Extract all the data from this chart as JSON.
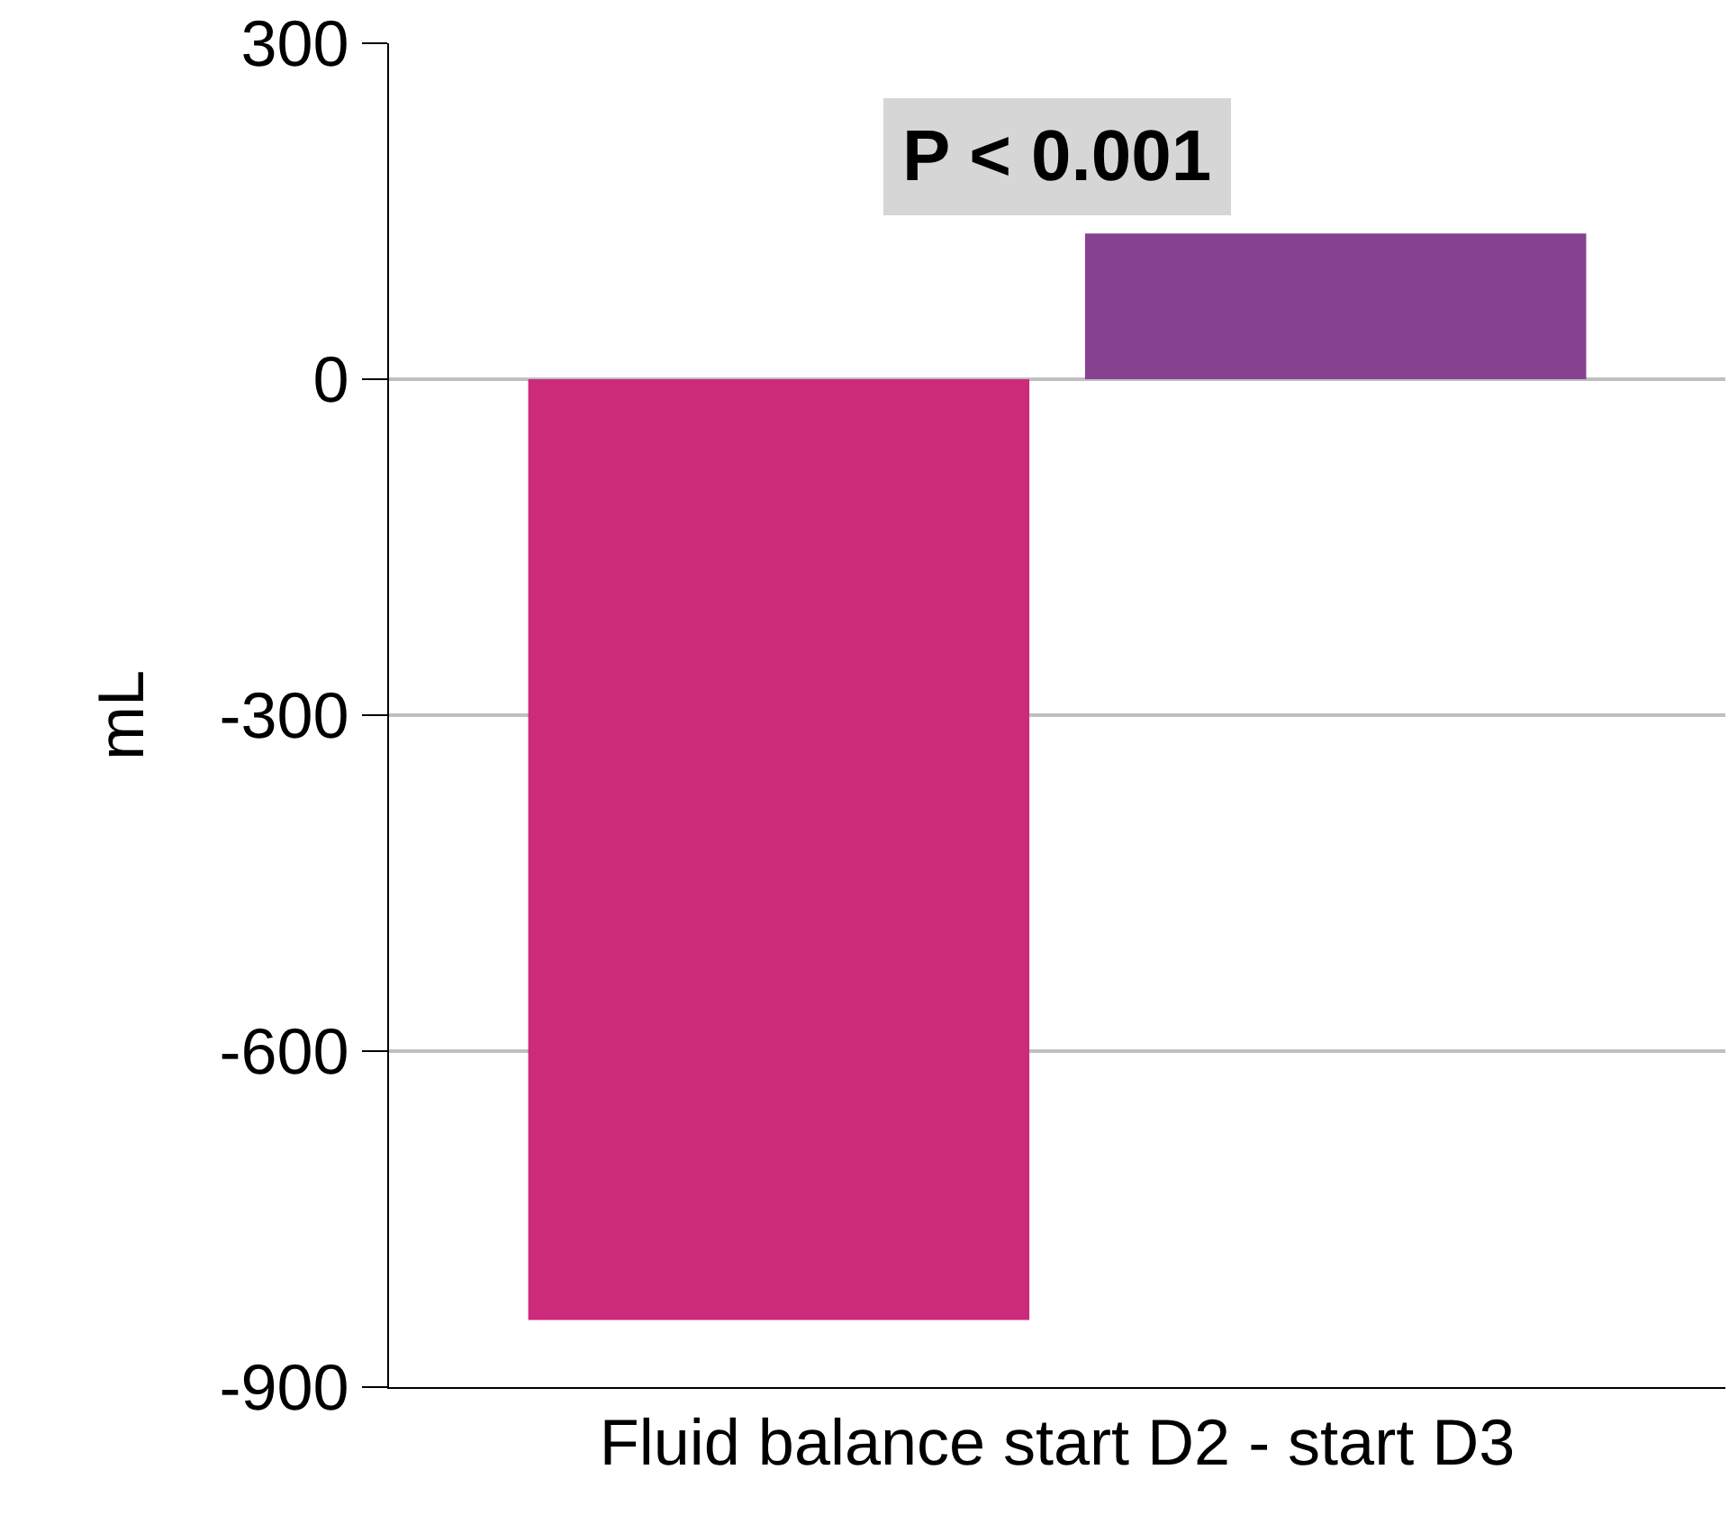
{
  "chart_data": {
    "type": "bar",
    "ylabel": "mL",
    "xlabel": "Fluid balance start D2 - start D3",
    "categories": [
      null,
      null
    ],
    "values": [
      -840,
      130
    ],
    "colors": [
      "#cc2a7a",
      "#86418f"
    ],
    "ylim": [
      -900,
      300
    ],
    "yticks": [
      -900,
      -600,
      -300,
      0,
      300
    ],
    "grid": "y",
    "annotations": [
      "P < 0.001"
    ]
  }
}
